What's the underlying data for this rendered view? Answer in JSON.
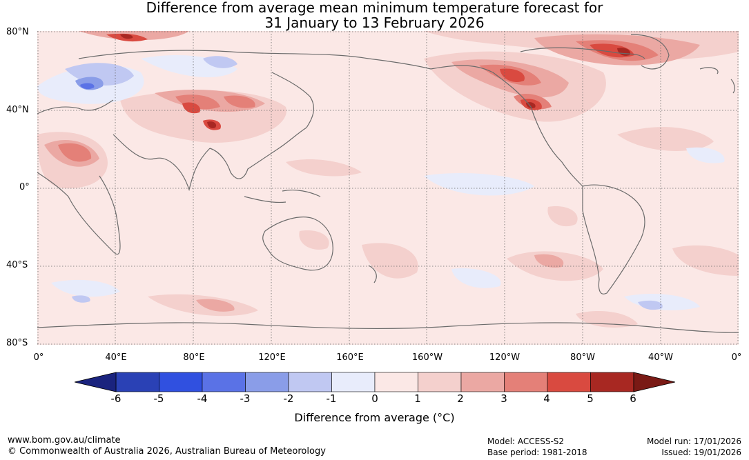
{
  "title_line1": "Difference from average mean minimum temperature forecast for",
  "title_line2": "31 January to 13 February 2026",
  "lat_labels": [
    "80°N",
    "40°N",
    "0°",
    "40°S",
    "80°S"
  ],
  "lon_labels": [
    "0°",
    "40°E",
    "80°E",
    "120°E",
    "160°E",
    "160°W",
    "120°W",
    "80°W",
    "40°W",
    "0°"
  ],
  "colorbar": {
    "title": "Difference from average (°C)",
    "ticks": [
      "-6",
      "-5",
      "-4",
      "-3",
      "-2",
      "-1",
      "0",
      "1",
      "2",
      "3",
      "4",
      "5",
      "6"
    ],
    "colors": [
      "#1a237e",
      "#2a41b5",
      "#3050e0",
      "#5a72e6",
      "#8a9de8",
      "#c0c8f2",
      "#e8ecfb",
      "#fbe8e6",
      "#f4d0cd",
      "#eba8a3",
      "#e48078",
      "#d94a40",
      "#a82822",
      "#7a1a15"
    ]
  },
  "footer": {
    "url": "www.bom.gov.au/climate",
    "copyright": "© Commonwealth of Australia 2026, Australian Bureau of Meteorology",
    "model": "Model: ACCESS-S2",
    "base_period": "Base period: 1981-2018",
    "model_run": "Model run: 17/01/2026",
    "issued": "Issued: 19/01/2026"
  }
}
